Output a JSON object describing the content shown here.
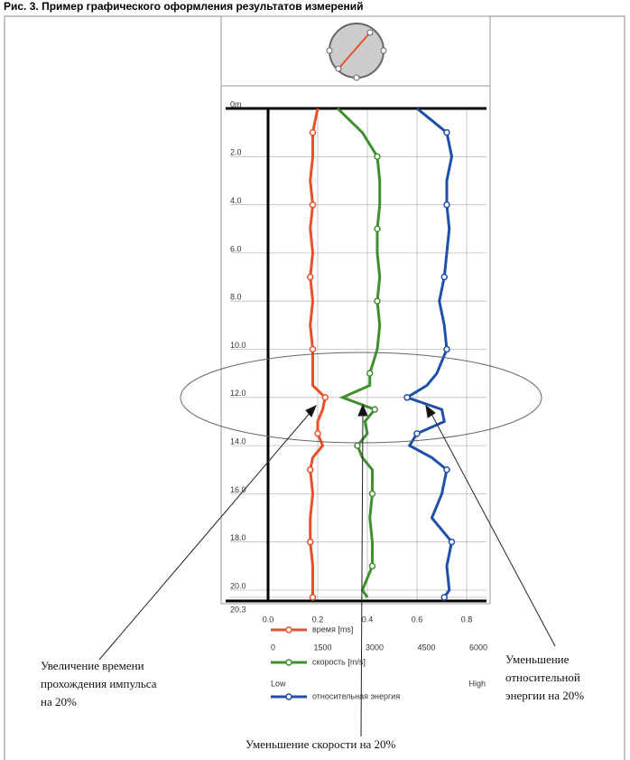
{
  "title": "Рис. 3. Пример графического оформления результатов измерений",
  "chart_data": {
    "type": "line",
    "y": [
      0,
      1,
      2,
      3,
      4,
      5,
      6,
      7,
      8,
      9,
      10,
      11,
      11.5,
      12,
      12.5,
      13,
      13.5,
      14,
      14.5,
      15,
      16,
      17,
      18,
      19,
      20,
      20.3
    ],
    "series": [
      {
        "name": "время [ms]",
        "color": "#e8502a",
        "values": [
          0.2,
          0.18,
          0.18,
          0.17,
          0.18,
          0.17,
          0.18,
          0.17,
          0.18,
          0.17,
          0.18,
          0.18,
          0.18,
          0.23,
          0.22,
          0.2,
          0.2,
          0.22,
          0.18,
          0.17,
          0.18,
          0.17,
          0.17,
          0.18,
          0.18,
          0.18
        ]
      },
      {
        "name": "скорость [m/s]",
        "color": "#3f8f2f",
        "values": [
          0.28,
          0.38,
          0.44,
          0.45,
          0.45,
          0.44,
          0.44,
          0.45,
          0.44,
          0.45,
          0.44,
          0.41,
          0.41,
          0.3,
          0.43,
          0.39,
          0.4,
          0.36,
          0.38,
          0.42,
          0.42,
          0.41,
          0.42,
          0.42,
          0.38,
          0.4
        ]
      },
      {
        "name": "относительная энергия",
        "color": "#1f4fa8",
        "values": [
          0.6,
          0.72,
          0.74,
          0.72,
          0.72,
          0.73,
          0.72,
          0.71,
          0.69,
          0.71,
          0.72,
          0.68,
          0.64,
          0.56,
          0.7,
          0.71,
          0.6,
          0.57,
          0.66,
          0.72,
          0.7,
          0.66,
          0.74,
          0.72,
          0.73,
          0.71
        ]
      }
    ],
    "xlim": [
      0,
      0.88
    ],
    "xticks": [
      {
        "value": 0,
        "label": "0.0"
      },
      {
        "value": 0.2,
        "label": "0.2"
      },
      {
        "value": 0.4,
        "label": "0.4"
      },
      {
        "value": 0.6,
        "label": "0.6"
      },
      {
        "value": 0.8,
        "label": "0.8"
      }
    ],
    "ylim": [
      0,
      20.3
    ],
    "yticks": [
      {
        "value": 0,
        "label": "0m"
      },
      {
        "value": 2,
        "label": "2.0"
      },
      {
        "value": 4,
        "label": "4.0"
      },
      {
        "value": 6,
        "label": "6.0"
      },
      {
        "value": 8,
        "label": "8.0"
      },
      {
        "value": 10,
        "label": "10.0"
      },
      {
        "value": 12,
        "label": "12.0"
      },
      {
        "value": 14,
        "label": "14.0"
      },
      {
        "value": 16,
        "label": "16.0"
      },
      {
        "value": 18,
        "label": "18.0"
      },
      {
        "value": 20,
        "label": "20.0"
      },
      {
        "value": 20.3,
        "label": "20.3"
      }
    ],
    "grid": true,
    "velocity_scale": [
      0,
      1500,
      3000,
      4500,
      6000
    ],
    "energy_scale": [
      "Low",
      "High"
    ],
    "annotations": [
      [
        "Увеличение времени",
        "прохождения импульса",
        "на 20%"
      ],
      [
        "Уменьшение скорости на 20%"
      ],
      [
        "Уменьшение",
        "относительной",
        "энергии на 20%"
      ]
    ]
  }
}
